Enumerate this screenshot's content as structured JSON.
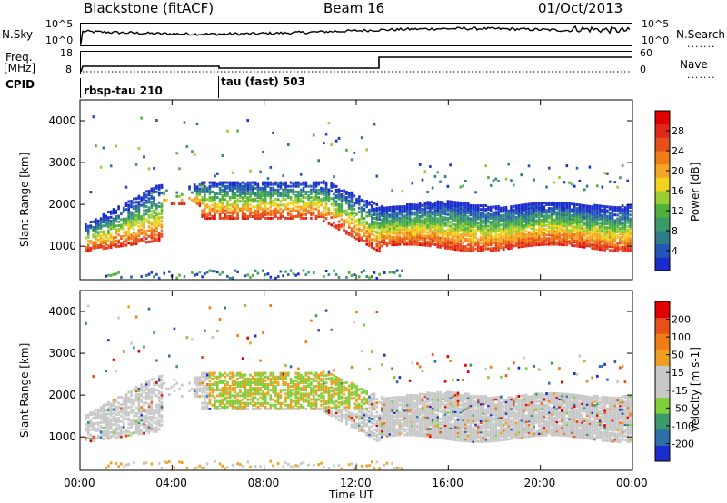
{
  "header": {
    "station": "Blackstone (fitACF)",
    "beam": "Beam 16",
    "date": "01/Oct/2013"
  },
  "noise_panel": {
    "left_label": "N.Sky",
    "right_label": "N.Search",
    "left_ticks": [
      "10^5",
      "10^0"
    ],
    "right_ticks": [
      "10^5",
      "10^0"
    ],
    "right_legend_marker": "......."
  },
  "freq_panel": {
    "left_label_1": "Freq.",
    "left_label_2": "[MHz]",
    "right_label": "Nave",
    "left_ticks": [
      "18",
      "8"
    ],
    "right_ticks": [
      "60",
      "0"
    ],
    "right_legend_marker": "......."
  },
  "cpid": {
    "label": "CPID",
    "modes": [
      {
        "name": "rbsp-tau 210"
      },
      {
        "name": "tau (fast) 503"
      }
    ]
  },
  "chart_data": [
    {
      "type": "heatmap",
      "name": "power",
      "ylabel": "Slant Range [km]",
      "xlabel": "",
      "x_ticks": [
        "00:00",
        "04:00",
        "08:00",
        "12:00",
        "16:00",
        "20:00",
        "00:00"
      ],
      "y_ticks": [
        1000,
        2000,
        3000,
        4000
      ],
      "ylim": [
        200,
        4500
      ],
      "xlim_hours": [
        0,
        24
      ],
      "colorbar": {
        "label": "Power [dB]",
        "ticks": [
          4,
          8,
          12,
          16,
          20,
          24,
          28
        ],
        "range": [
          0,
          32
        ],
        "colors": [
          "#1a2ccc",
          "#2456b8",
          "#2e7c8a",
          "#3a9a6a",
          "#4fb03c",
          "#9acd32",
          "#f2d21e",
          "#f5a623",
          "#f07c14",
          "#e8501a",
          "#e0281c",
          "#e00000"
        ]
      }
    },
    {
      "type": "heatmap",
      "name": "velocity",
      "ylabel": "Slant Range [km]",
      "xlabel": "Time UT",
      "x_ticks": [
        "00:00",
        "04:00",
        "08:00",
        "12:00",
        "16:00",
        "20:00",
        "00:00"
      ],
      "y_ticks": [
        1000,
        2000,
        3000,
        4000
      ],
      "ylim": [
        200,
        4500
      ],
      "xlim_hours": [
        0,
        24
      ],
      "colorbar": {
        "label": "Velocity [m s-1]",
        "ticks": [
          "200",
          "100",
          "50",
          "15",
          "-15",
          "-50",
          "-100",
          "-200"
        ],
        "colors": [
          "#1a2ccc",
          "#2e6fa8",
          "#3a9a6a",
          "#7fcf3a",
          "#c8c8c8",
          "#c8c8c8",
          "#f0a020",
          "#f07c14",
          "#e8501a",
          "#e00000"
        ]
      }
    }
  ]
}
